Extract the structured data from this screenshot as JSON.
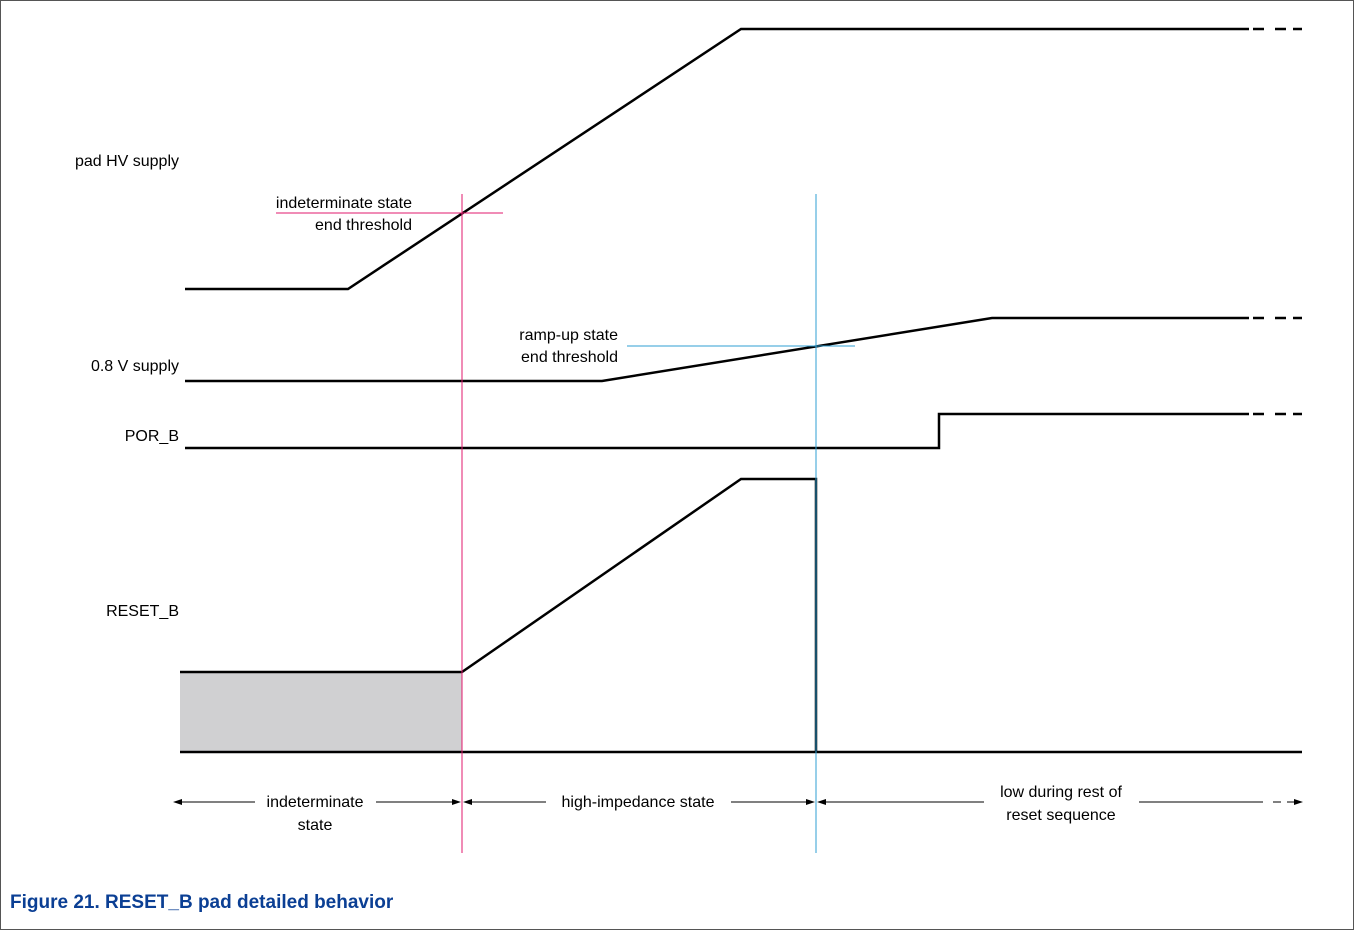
{
  "colors": {
    "signal": "#000000",
    "indeterminate_marker": "#e2196c",
    "rampup_marker": "#2f9fd3",
    "indeterminate_fill": "#d0d0d2",
    "caption": "#0b3f94"
  },
  "signals": {
    "pad_hv_supply": "pad HV supply",
    "supply_0v8": "0.8 V supply",
    "por_b": "POR_B",
    "reset_b": "RESET_B"
  },
  "annotations": {
    "indeterminate_threshold": [
      "indeterminate state",
      "end threshold"
    ],
    "rampup_threshold": [
      "ramp-up state",
      "end threshold"
    ]
  },
  "phases": {
    "indeterminate": [
      "indeterminate",
      "state"
    ],
    "high_impedance": [
      "high-impedance state"
    ],
    "low_reset": [
      "low during rest of",
      "reset sequence"
    ]
  },
  "caption": "Figure 21.  RESET_B pad detailed behavior"
}
